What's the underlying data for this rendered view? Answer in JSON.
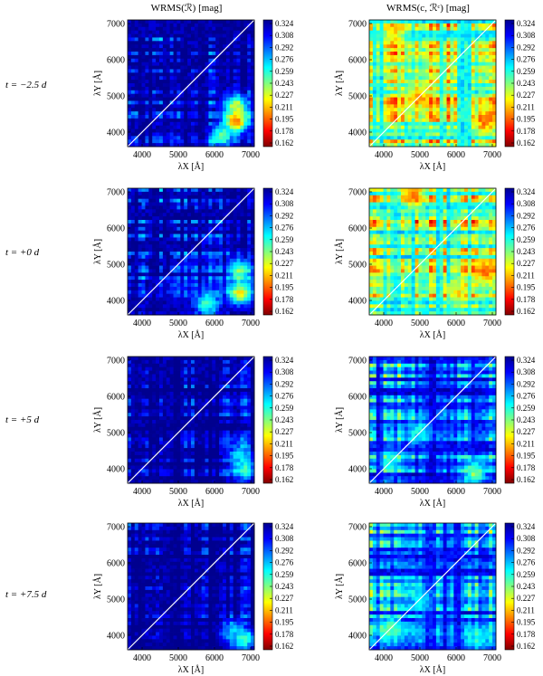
{
  "chart_data": {
    "type": "heatmap",
    "column_titles": [
      "WRMS(ℛ)  [mag]",
      "WRMS(c, ℛᶜ)  [mag]"
    ],
    "row_labels": [
      "t = −2.5 d",
      "t = +0 d",
      "t = +5 d",
      "t = +7.5 d"
    ],
    "xlabel": "λX [Å]",
    "ylabel": "λY [Å]",
    "x_ticks": [
      "4000",
      "5000",
      "6000",
      "7000"
    ],
    "y_ticks": [
      "7000",
      "6000",
      "5000",
      "4000"
    ],
    "x_tick_values": [
      4000,
      5000,
      6000,
      7000
    ],
    "y_tick_values": [
      7000,
      6000,
      5000,
      4000
    ],
    "axis_range": [
      3600,
      7100
    ],
    "colorbar_ticks": [
      "0.324",
      "0.308",
      "0.292",
      "0.276",
      "0.259",
      "0.243",
      "0.227",
      "0.211",
      "0.195",
      "0.178",
      "0.162"
    ],
    "colorbar_range": [
      0.162,
      0.324
    ],
    "colorbar_direction": "high values at top (blue), low values at bottom (red)",
    "colormap": [
      "#00008f",
      "#0000ff",
      "#0080ff",
      "#00ffff",
      "#80ff80",
      "#ffff00",
      "#ff8000",
      "#ff0000",
      "#800000"
    ],
    "diagonal_line_color": "#ffffff",
    "panels": [
      {
        "row": 0,
        "col": 0,
        "mean_level": 0.315,
        "hot_features": [
          [
            6600,
            4300,
            0.19
          ],
          [
            6600,
            4700,
            0.23
          ],
          [
            4500,
            6800,
            0.26
          ],
          [
            6200,
            3900,
            0.25
          ]
        ]
      },
      {
        "row": 0,
        "col": 1,
        "mean_level": 0.245,
        "hot_features": [
          [
            5000,
            5000,
            0.21
          ],
          [
            6800,
            4300,
            0.2
          ],
          [
            4300,
            6700,
            0.22
          ]
        ]
      },
      {
        "row": 1,
        "col": 0,
        "mean_level": 0.312,
        "hot_features": [
          [
            6700,
            4200,
            0.22
          ],
          [
            6700,
            4800,
            0.24
          ],
          [
            4500,
            6900,
            0.27
          ],
          [
            5800,
            3900,
            0.25
          ]
        ]
      },
      {
        "row": 1,
        "col": 1,
        "mean_level": 0.248,
        "hot_features": [
          [
            4800,
            6900,
            0.2
          ],
          [
            6800,
            4800,
            0.2
          ],
          [
            6000,
            4200,
            0.22
          ]
        ]
      },
      {
        "row": 2,
        "col": 0,
        "mean_level": 0.318,
        "hot_features": [
          [
            6800,
            4000,
            0.25
          ],
          [
            6700,
            4400,
            0.27
          ],
          [
            4200,
            6900,
            0.29
          ]
        ]
      },
      {
        "row": 2,
        "col": 1,
        "mean_level": 0.29,
        "hot_features": [
          [
            5000,
            5000,
            0.26
          ],
          [
            4200,
            4200,
            0.26
          ],
          [
            6500,
            3900,
            0.24
          ]
        ]
      },
      {
        "row": 3,
        "col": 0,
        "mean_level": 0.32,
        "hot_features": [
          [
            6800,
            3900,
            0.25
          ],
          [
            6500,
            4100,
            0.27
          ],
          [
            3800,
            6900,
            0.29
          ]
        ]
      },
      {
        "row": 3,
        "col": 1,
        "mean_level": 0.286,
        "hot_features": [
          [
            4200,
            4200,
            0.25
          ],
          [
            5000,
            5000,
            0.27
          ],
          [
            6600,
            3900,
            0.26
          ]
        ]
      }
    ]
  }
}
